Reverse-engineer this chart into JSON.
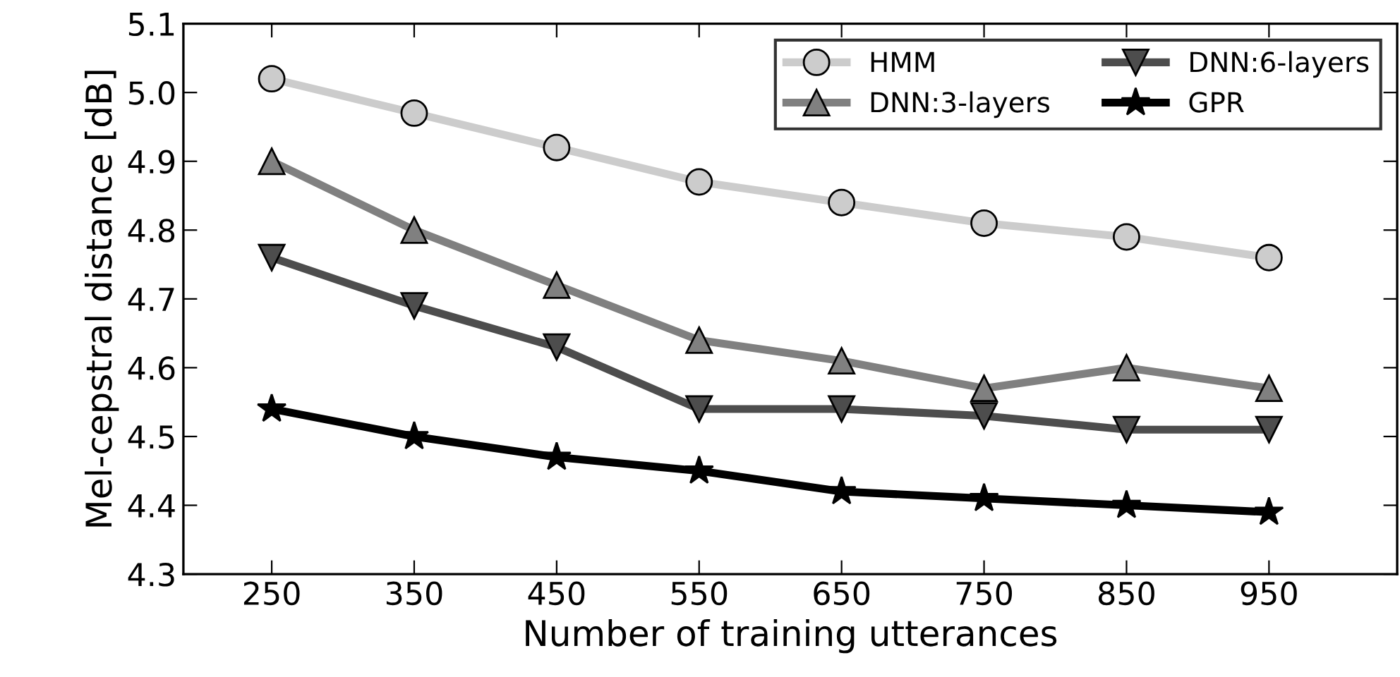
{
  "chart_data": {
    "type": "line",
    "xlabel": "Number of training utterances",
    "ylabel": "Mel-cepstral distance [dB]",
    "x": [
      250,
      350,
      450,
      550,
      650,
      750,
      850,
      950
    ],
    "xlim": [
      188,
      1040
    ],
    "xticks": [
      250,
      350,
      450,
      550,
      650,
      750,
      850,
      950
    ],
    "ylim": [
      4.3,
      5.1
    ],
    "yticks": [
      {
        "value": 4.3,
        "label": "4.3"
      },
      {
        "value": 4.4,
        "label": "4.4"
      },
      {
        "value": 4.5,
        "label": "4.5"
      },
      {
        "value": 4.6,
        "label": "4.6"
      },
      {
        "value": 4.7,
        "label": "4.7"
      },
      {
        "value": 4.8,
        "label": "4.8"
      },
      {
        "value": 4.9,
        "label": "4.9"
      },
      {
        "value": 5.0,
        "label": "5.0"
      },
      {
        "value": 5.1,
        "label": "5.1"
      }
    ],
    "legend": "top right",
    "grid": false,
    "series": [
      {
        "name": "HMM",
        "color": "#cccccc",
        "marker": "circle",
        "values": [
          5.02,
          4.97,
          4.92,
          4.87,
          4.84,
          4.81,
          4.79,
          4.76
        ]
      },
      {
        "name": "DNN:3-layers",
        "color": "#808080",
        "marker": "triangle",
        "values": [
          4.9,
          4.8,
          4.72,
          4.64,
          4.61,
          4.57,
          4.6,
          4.57
        ]
      },
      {
        "name": "DNN:6-layers",
        "color": "#4d4d4d",
        "marker": "triangle_down",
        "values": [
          4.76,
          4.69,
          4.63,
          4.54,
          4.54,
          4.53,
          4.51,
          4.51
        ]
      },
      {
        "name": "GPR",
        "color": "#000000",
        "marker": "star",
        "values": [
          4.54,
          4.5,
          4.47,
          4.45,
          4.42,
          4.41,
          4.4,
          4.39
        ]
      }
    ]
  }
}
